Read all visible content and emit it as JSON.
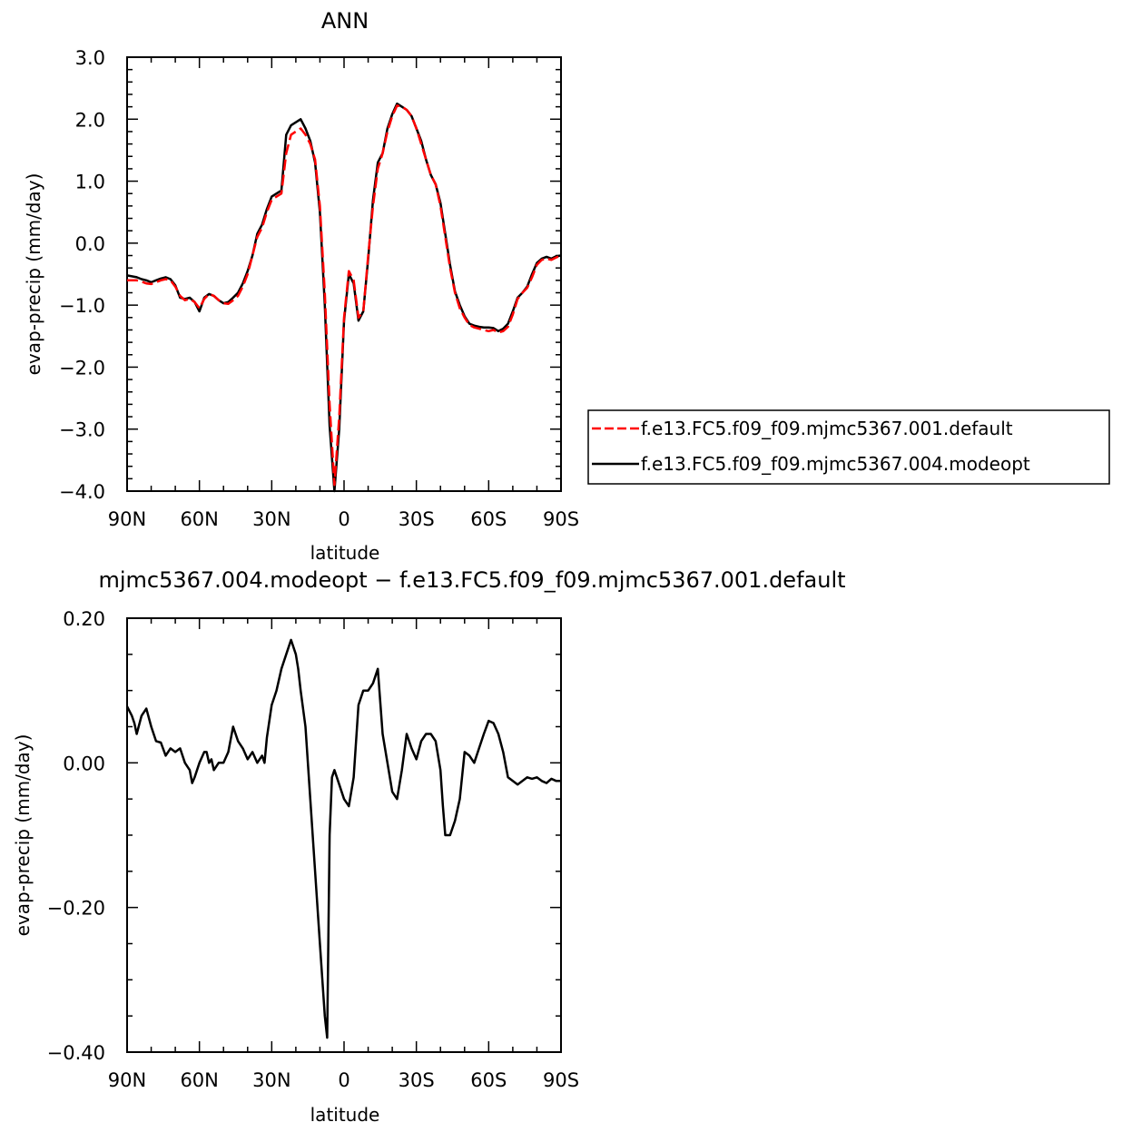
{
  "chart_data": [
    {
      "type": "line",
      "title": "ANN",
      "xlabel": "latitude",
      "ylabel": "evap-precip (mm/day)",
      "xlim": [
        90,
        -90
      ],
      "ylim": [
        -4.0,
        3.0
      ],
      "grid": false,
      "x_ticks": [
        {
          "value": 90,
          "label": "90N"
        },
        {
          "value": 60,
          "label": "60N"
        },
        {
          "value": 30,
          "label": "30N"
        },
        {
          "value": 0,
          "label": "0"
        },
        {
          "value": -30,
          "label": "30S"
        },
        {
          "value": -60,
          "label": "60S"
        },
        {
          "value": -90,
          "label": "90S"
        }
      ],
      "y_ticks": [
        {
          "value": 3.0,
          "label": "3.0"
        },
        {
          "value": 2.0,
          "label": "2.0"
        },
        {
          "value": 1.0,
          "label": "1.0"
        },
        {
          "value": 0.0,
          "label": "0.0"
        },
        {
          "value": -1.0,
          "label": "−1.0"
        },
        {
          "value": -2.0,
          "label": "−2.0"
        },
        {
          "value": -3.0,
          "label": "−3.0"
        },
        {
          "value": -4.0,
          "label": "−4.0"
        }
      ],
      "legend_position": "right",
      "series": [
        {
          "name": "f.e13.FC5.f09_f09.mjmc5367.001.default",
          "color": "#ff0000",
          "dash": "dashed",
          "x": [
            90,
            86,
            84,
            82,
            80,
            78,
            76,
            74,
            72,
            70,
            68,
            66,
            64,
            62,
            60,
            58,
            56,
            54,
            52,
            50,
            48,
            46,
            44,
            42,
            40,
            38,
            36,
            34,
            32,
            30,
            28,
            26,
            24,
            22,
            20,
            18,
            16,
            14,
            12,
            10,
            8,
            6,
            4,
            2,
            0,
            -2,
            -4,
            -6,
            -8,
            -10,
            -12,
            -14,
            -16,
            -18,
            -20,
            -22,
            -24,
            -26,
            -28,
            -30,
            -32,
            -34,
            -36,
            -38,
            -40,
            -42,
            -44,
            -46,
            -48,
            -50,
            -52,
            -54,
            -56,
            -58,
            -60,
            -62,
            -64,
            -66,
            -68,
            -70,
            -72,
            -74,
            -76,
            -78,
            -80,
            -82,
            -84,
            -86,
            -88,
            -90
          ],
          "y": [
            -0.6,
            -0.6,
            -0.62,
            -0.65,
            -0.66,
            -0.63,
            -0.6,
            -0.58,
            -0.6,
            -0.7,
            -0.85,
            -0.92,
            -0.9,
            -0.95,
            -1.05,
            -0.9,
            -0.82,
            -0.85,
            -0.92,
            -0.97,
            -0.98,
            -0.92,
            -0.85,
            -0.7,
            -0.5,
            -0.2,
            0.1,
            0.25,
            0.5,
            0.7,
            0.75,
            0.8,
            1.45,
            1.75,
            1.8,
            1.85,
            1.75,
            1.6,
            1.35,
            0.6,
            -0.8,
            -2.6,
            -3.9,
            -2.8,
            -1.2,
            -0.45,
            -0.6,
            -1.2,
            -1.1,
            -0.2,
            0.6,
            1.2,
            1.45,
            1.8,
            2.05,
            2.22,
            2.2,
            2.15,
            2.05,
            1.85,
            1.6,
            1.35,
            1.1,
            0.95,
            0.6,
            0.1,
            -0.4,
            -0.8,
            -1.05,
            -1.2,
            -1.32,
            -1.36,
            -1.38,
            -1.4,
            -1.42,
            -1.4,
            -1.44,
            -1.42,
            -1.35,
            -1.15,
            -0.9,
            -0.8,
            -0.72,
            -0.55,
            -0.35,
            -0.27,
            -0.25,
            -0.27,
            -0.23,
            -0.2
          ]
        },
        {
          "name": "f.e13.FC5.f09_f09.mjmc5367.004.modeopt",
          "color": "#000000",
          "dash": "solid",
          "x": [
            90,
            86,
            84,
            82,
            80,
            78,
            76,
            74,
            72,
            70,
            68,
            66,
            64,
            62,
            60,
            58,
            56,
            54,
            52,
            50,
            48,
            46,
            44,
            42,
            40,
            38,
            36,
            34,
            32,
            30,
            28,
            26,
            24,
            22,
            20,
            18,
            16,
            14,
            12,
            10,
            8,
            6,
            4,
            2,
            0,
            -2,
            -4,
            -6,
            -8,
            -10,
            -12,
            -14,
            -16,
            -18,
            -20,
            -22,
            -24,
            -26,
            -28,
            -30,
            -32,
            -34,
            -36,
            -38,
            -40,
            -42,
            -44,
            -46,
            -48,
            -50,
            -52,
            -54,
            -56,
            -58,
            -60,
            -62,
            -64,
            -66,
            -68,
            -70,
            -72,
            -74,
            -76,
            -78,
            -80,
            -82,
            -84,
            -86,
            -88,
            -90
          ],
          "y": [
            -0.52,
            -0.55,
            -0.58,
            -0.6,
            -0.63,
            -0.6,
            -0.57,
            -0.55,
            -0.58,
            -0.68,
            -0.88,
            -0.9,
            -0.88,
            -0.95,
            -1.1,
            -0.88,
            -0.82,
            -0.85,
            -0.92,
            -0.97,
            -0.95,
            -0.88,
            -0.8,
            -0.65,
            -0.45,
            -0.2,
            0.15,
            0.3,
            0.55,
            0.75,
            0.8,
            0.85,
            1.75,
            1.9,
            1.95,
            2.0,
            1.85,
            1.65,
            1.3,
            0.5,
            -1.0,
            -2.95,
            -4.0,
            -3.0,
            -1.25,
            -0.5,
            -0.65,
            -1.25,
            -1.1,
            -0.25,
            0.7,
            1.3,
            1.45,
            1.85,
            2.08,
            2.25,
            2.2,
            2.15,
            2.05,
            1.85,
            1.65,
            1.35,
            1.1,
            0.95,
            0.65,
            0.15,
            -0.35,
            -0.78,
            -1.0,
            -1.18,
            -1.3,
            -1.33,
            -1.35,
            -1.36,
            -1.36,
            -1.37,
            -1.42,
            -1.38,
            -1.3,
            -1.1,
            -0.88,
            -0.8,
            -0.7,
            -0.5,
            -0.32,
            -0.25,
            -0.22,
            -0.25,
            -0.21,
            -0.2
          ]
        }
      ]
    },
    {
      "type": "line",
      "title": "mjmc5367.004.modeopt − f.e13.FC5.f09_f09.mjmc5367.001.default",
      "xlabel": "latitude",
      "ylabel": "evap-precip (mm/day)",
      "xlim": [
        90,
        -90
      ],
      "ylim": [
        -0.4,
        0.2
      ],
      "grid": false,
      "x_ticks": [
        {
          "value": 90,
          "label": "90N"
        },
        {
          "value": 60,
          "label": "60N"
        },
        {
          "value": 30,
          "label": "30N"
        },
        {
          "value": 0,
          "label": "0"
        },
        {
          "value": -30,
          "label": "30S"
        },
        {
          "value": -60,
          "label": "60S"
        },
        {
          "value": -90,
          "label": "90S"
        }
      ],
      "y_ticks": [
        {
          "value": 0.2,
          "label": "0.20"
        },
        {
          "value": 0.0,
          "label": "0.00"
        },
        {
          "value": -0.2,
          "label": "−0.20"
        },
        {
          "value": -0.4,
          "label": "−0.40"
        }
      ],
      "series": [
        {
          "color": "#000000",
          "dash": "solid",
          "x": [
            90,
            88,
            87,
            86,
            84,
            82,
            80,
            78,
            76,
            74,
            72,
            70,
            68,
            66,
            64,
            63,
            62,
            60,
            58,
            57,
            56,
            55,
            54,
            52,
            50,
            48,
            46,
            44,
            42,
            40,
            38,
            36,
            34,
            33,
            32,
            30,
            28,
            26,
            24,
            22,
            20,
            19,
            18,
            16,
            14,
            12,
            10,
            9,
            8,
            7,
            6,
            5,
            4,
            2,
            0,
            -2,
            -4,
            -6,
            -8,
            -10,
            -12,
            -14,
            -16,
            -18,
            -20,
            -22,
            -24,
            -26,
            -28,
            -30,
            -32,
            -34,
            -36,
            -38,
            -40,
            -41,
            -42,
            -44,
            -46,
            -48,
            -50,
            -52,
            -54,
            -56,
            -58,
            -60,
            -62,
            -64,
            -66,
            -68,
            -70,
            -72,
            -74,
            -76,
            -78,
            -80,
            -82,
            -84,
            -86,
            -88,
            -90
          ],
          "y": [
            0.078,
            0.065,
            0.055,
            0.04,
            0.065,
            0.075,
            0.05,
            0.03,
            0.028,
            0.01,
            0.02,
            0.015,
            0.02,
            0.0,
            -0.01,
            -0.028,
            -0.02,
            0.0,
            0.015,
            0.015,
            0.0,
            0.005,
            -0.01,
            0.0,
            0.0,
            0.015,
            0.05,
            0.03,
            0.02,
            0.005,
            0.015,
            0.0,
            0.01,
            0.0,
            0.035,
            0.08,
            0.1,
            0.13,
            0.15,
            0.17,
            0.15,
            0.13,
            0.1,
            0.05,
            -0.05,
            -0.15,
            -0.25,
            -0.3,
            -0.35,
            -0.38,
            -0.1,
            -0.02,
            -0.01,
            -0.03,
            -0.05,
            -0.06,
            -0.02,
            0.08,
            0.1,
            0.1,
            0.11,
            0.13,
            0.04,
            0.0,
            -0.04,
            -0.05,
            -0.01,
            0.04,
            0.02,
            0.005,
            0.03,
            0.04,
            0.04,
            0.03,
            -0.01,
            -0.06,
            -0.1,
            -0.1,
            -0.08,
            -0.05,
            0.015,
            0.01,
            0.0,
            0.02,
            0.04,
            0.058,
            0.055,
            0.04,
            0.015,
            -0.02,
            -0.025,
            -0.03,
            -0.025,
            -0.02,
            -0.022,
            -0.02,
            -0.025,
            -0.028,
            -0.022,
            -0.025,
            -0.025
          ]
        }
      ]
    }
  ]
}
